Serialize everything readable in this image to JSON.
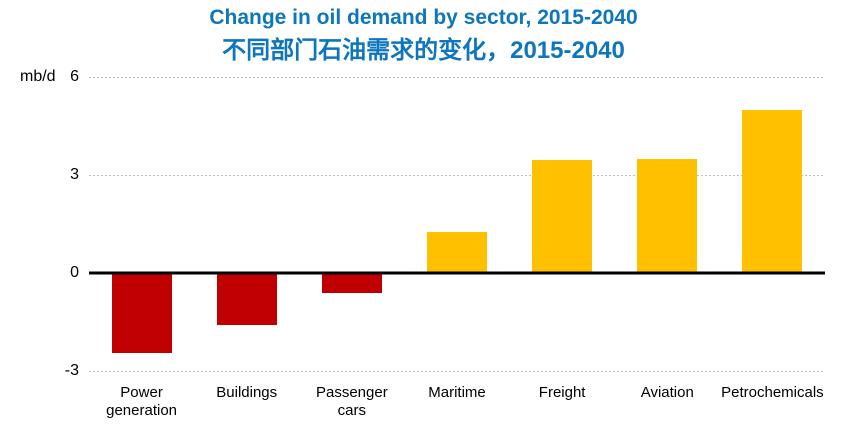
{
  "header": {
    "title": "Change in oil demand by sector, 2015-2040",
    "subtitle": "不同部门石油需求的变化，2015-2040",
    "title_color": "#0E76BC"
  },
  "chart_data": {
    "type": "bar",
    "title": "Change in oil demand by sector, 2015-2040",
    "subtitle": "不同部门石油需求的变化，2015-2040",
    "ylabel": "mb/d",
    "xlabel": "",
    "categories": [
      "Power\ngeneration",
      "Buildings",
      "Passenger\ncars",
      "Maritime",
      "Freight",
      "Aviation",
      "Petrochemicals"
    ],
    "values": [
      -2.45,
      -1.6,
      -0.6,
      1.25,
      3.45,
      3.5,
      5.0
    ],
    "ylim": [
      -3,
      6
    ],
    "y_ticks": [
      6,
      3,
      0,
      -3
    ],
    "grid": "horizontal-dotted",
    "legend": "none",
    "positive_color": "#FFC000",
    "negative_color": "#C00000",
    "gridline_color": "#BFBFBF",
    "zero_line_color": "#000000"
  }
}
